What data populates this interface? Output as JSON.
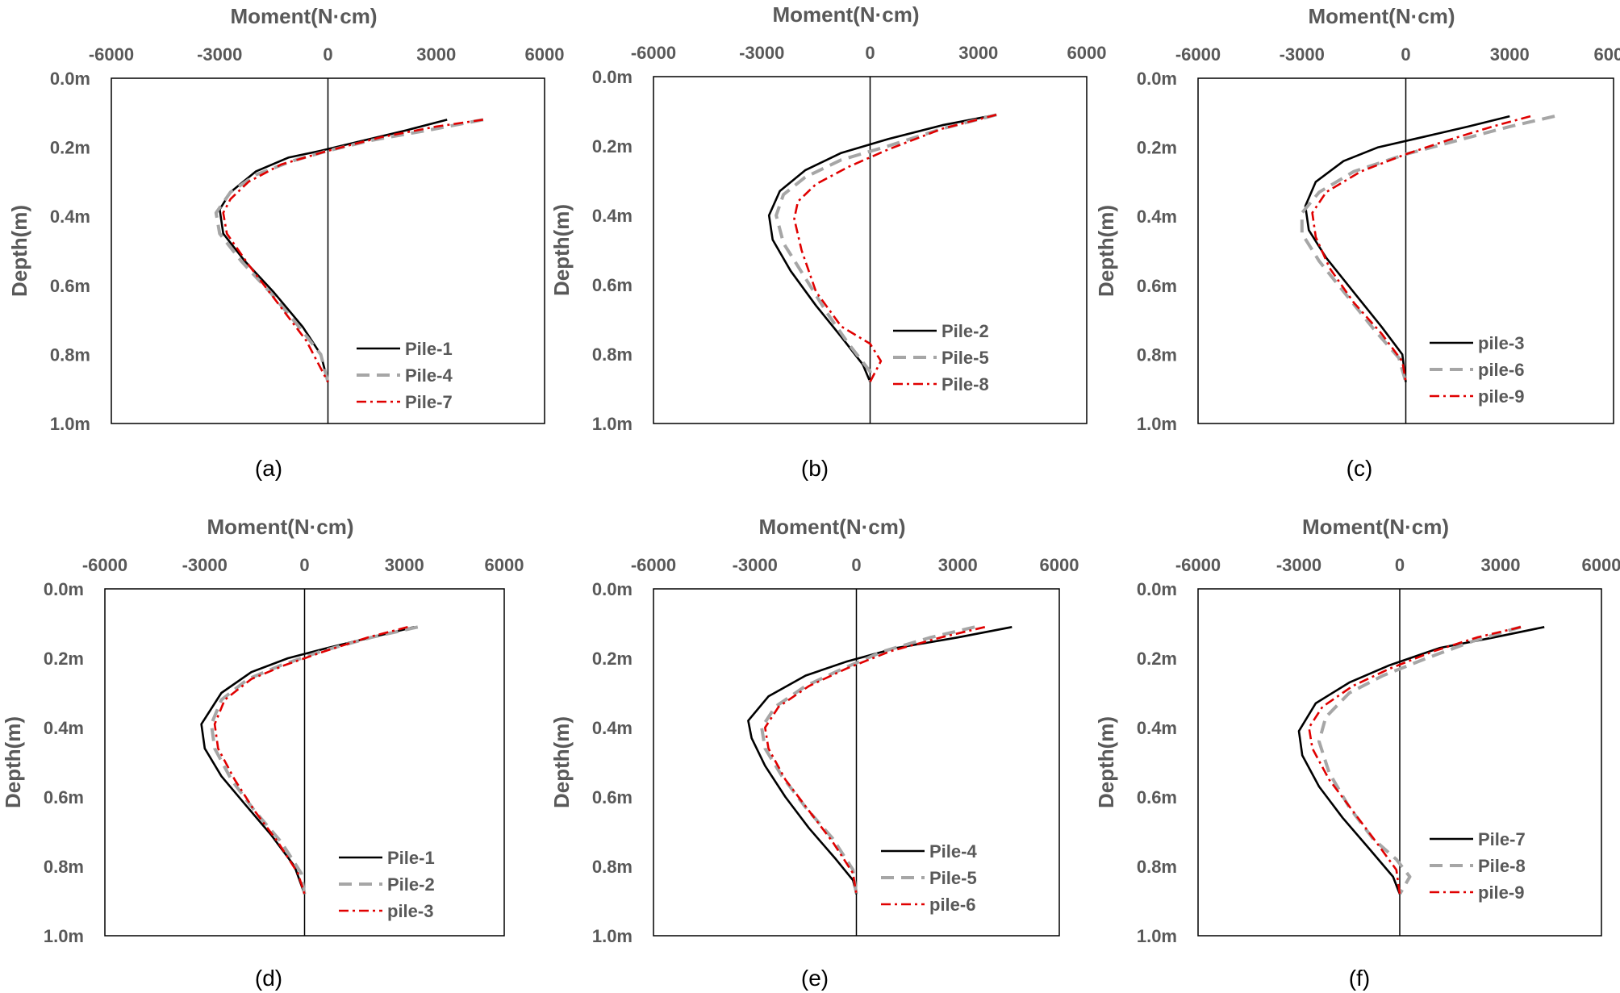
{
  "chart_data": [
    {
      "type": "line",
      "panel_label": "(a)",
      "xlabel": "Moment(N·cm)",
      "ylabel": "Depth(m)",
      "xlim": [
        -6000,
        6000
      ],
      "ylim": [
        0,
        1.0
      ],
      "x_ticks": [
        "-6000",
        "-3000",
        "0",
        "3000",
        "6000"
      ],
      "y_ticks": [
        "0.0m",
        "0.2m",
        "0.4m",
        "0.6m",
        "0.8m",
        "1.0m"
      ],
      "legend_position": "bottom-right",
      "series": [
        {
          "name": "Pile-1",
          "color": "#000000",
          "style": "solid",
          "x": [
            3300,
            2200,
            1000,
            -200,
            -1100,
            -2000,
            -2700,
            -3000,
            -2900,
            -2300,
            -1500,
            -700,
            -200,
            0
          ],
          "y": [
            0.12,
            0.15,
            0.18,
            0.21,
            0.23,
            0.27,
            0.33,
            0.38,
            0.45,
            0.53,
            0.62,
            0.72,
            0.8,
            0.88
          ]
        },
        {
          "name": "Pile-4",
          "color": "#a6a6a6",
          "style": "dash",
          "x": [
            4300,
            2800,
            1200,
            0,
            -1000,
            -2000,
            -2700,
            -3100,
            -3000,
            -2400,
            -1600,
            -800,
            -200,
            0
          ],
          "y": [
            0.12,
            0.15,
            0.18,
            0.21,
            0.24,
            0.28,
            0.33,
            0.39,
            0.45,
            0.53,
            0.62,
            0.72,
            0.8,
            0.88
          ]
        },
        {
          "name": "Pile-7",
          "color": "#e00000",
          "style": "dashdot",
          "x": [
            4300,
            3000,
            1500,
            0,
            -1300,
            -2200,
            -2700,
            -2900,
            -2800,
            -2200,
            -1400,
            -600,
            0
          ],
          "y": [
            0.12,
            0.14,
            0.17,
            0.21,
            0.25,
            0.3,
            0.35,
            0.39,
            0.45,
            0.54,
            0.65,
            0.76,
            0.88
          ]
        }
      ]
    },
    {
      "type": "line",
      "panel_label": "(b)",
      "xlabel": "Moment(N·cm)",
      "ylabel": "Depth(m)",
      "xlim": [
        -6000,
        6000
      ],
      "ylim": [
        0,
        1.0
      ],
      "x_ticks": [
        "-6000",
        "-3000",
        "0",
        "3000",
        "6000"
      ],
      "y_ticks": [
        "0.0m",
        "0.2m",
        "0.4m",
        "0.6m",
        "0.8m",
        "1.0m"
      ],
      "legend_position": "bottom-right",
      "series": [
        {
          "name": "Pile-2",
          "color": "#000000",
          "style": "solid",
          "x": [
            3500,
            2000,
            500,
            -800,
            -1800,
            -2500,
            -2800,
            -2700,
            -2200,
            -1500,
            -800,
            -200,
            0
          ],
          "y": [
            0.11,
            0.14,
            0.18,
            0.22,
            0.27,
            0.33,
            0.4,
            0.47,
            0.56,
            0.66,
            0.75,
            0.83,
            0.88
          ]
        },
        {
          "name": "Pile-5",
          "color": "#a6a6a6",
          "style": "dash",
          "x": [
            3500,
            2000,
            500,
            -800,
            -1800,
            -2400,
            -2600,
            -2400,
            -1800,
            -1200,
            -600,
            0,
            0
          ],
          "y": [
            0.11,
            0.15,
            0.2,
            0.24,
            0.29,
            0.34,
            0.4,
            0.48,
            0.58,
            0.68,
            0.77,
            0.85,
            0.88
          ]
        },
        {
          "name": "Pile-8",
          "color": "#e00000",
          "style": "dashdot",
          "x": [
            3500,
            2000,
            500,
            -600,
            -1500,
            -2000,
            -2100,
            -1900,
            -1500,
            -800,
            0,
            300,
            0
          ],
          "y": [
            0.11,
            0.15,
            0.21,
            0.26,
            0.31,
            0.36,
            0.41,
            0.5,
            0.62,
            0.72,
            0.77,
            0.82,
            0.88
          ]
        }
      ]
    },
    {
      "type": "line",
      "panel_label": "(c)",
      "xlabel": "Moment(N·cm)",
      "ylabel": "Depth(m)",
      "xlim": [
        -6000,
        6000
      ],
      "ylim": [
        0,
        1.0
      ],
      "x_ticks": [
        "-6000",
        "-3000",
        "0",
        "3000",
        "6000"
      ],
      "y_ticks": [
        "0.0m",
        "0.2m",
        "0.4m",
        "0.6m",
        "0.8m",
        "1.0m"
      ],
      "legend_position": "bottom-right",
      "series": [
        {
          "name": "pile-3",
          "color": "#000000",
          "style": "solid",
          "x": [
            3000,
            1800,
            500,
            -800,
            -1800,
            -2600,
            -2900,
            -2800,
            -2300,
            -1500,
            -700,
            -100,
            0
          ],
          "y": [
            0.11,
            0.14,
            0.17,
            0.2,
            0.24,
            0.3,
            0.37,
            0.44,
            0.52,
            0.62,
            0.72,
            0.8,
            0.88
          ]
        },
        {
          "name": "pile-6",
          "color": "#a6a6a6",
          "style": "dash",
          "x": [
            4300,
            3000,
            1500,
            0,
            -1500,
            -2500,
            -3000,
            -3000,
            -2500,
            -1700,
            -900,
            -200,
            0
          ],
          "y": [
            0.11,
            0.14,
            0.18,
            0.22,
            0.27,
            0.33,
            0.39,
            0.45,
            0.53,
            0.63,
            0.73,
            0.81,
            0.88
          ]
        },
        {
          "name": "pile-9",
          "color": "#e00000",
          "style": "dashdot",
          "x": [
            3600,
            2500,
            1200,
            0,
            -1300,
            -2300,
            -2700,
            -2600,
            -2200,
            -1500,
            -700,
            -100,
            0
          ],
          "y": [
            0.11,
            0.14,
            0.18,
            0.22,
            0.27,
            0.33,
            0.39,
            0.46,
            0.55,
            0.65,
            0.74,
            0.82,
            0.88
          ]
        }
      ]
    },
    {
      "type": "line",
      "panel_label": "(d)",
      "xlabel": "Moment(N·cm)",
      "ylabel": "Depth(m)",
      "xlim": [
        -6000,
        6000
      ],
      "ylim": [
        0,
        1.0
      ],
      "x_ticks": [
        "-6000",
        "-3000",
        "0",
        "3000",
        "6000"
      ],
      "y_ticks": [
        "0.0m",
        "0.2m",
        "0.4m",
        "0.6m",
        "0.8m",
        "1.0m"
      ],
      "legend_position": "bottom-right",
      "series": [
        {
          "name": "Pile-1",
          "color": "#000000",
          "style": "solid",
          "x": [
            3300,
            2000,
            700,
            -500,
            -1600,
            -2500,
            -3100,
            -3000,
            -2500,
            -1800,
            -1000,
            -300,
            0
          ],
          "y": [
            0.11,
            0.14,
            0.17,
            0.2,
            0.24,
            0.3,
            0.39,
            0.46,
            0.54,
            0.62,
            0.71,
            0.8,
            0.88
          ]
        },
        {
          "name": "Pile-2",
          "color": "#a6a6a6",
          "style": "dash",
          "x": [
            3400,
            2000,
            500,
            -700,
            -1700,
            -2500,
            -2800,
            -2700,
            -2200,
            -1500,
            -700,
            -100,
            0
          ],
          "y": [
            0.11,
            0.14,
            0.18,
            0.22,
            0.26,
            0.32,
            0.39,
            0.46,
            0.55,
            0.64,
            0.73,
            0.82,
            0.88
          ]
        },
        {
          "name": "pile-3",
          "color": "#e00000",
          "style": "dashdot",
          "x": [
            3100,
            1900,
            600,
            -600,
            -1600,
            -2400,
            -2700,
            -2600,
            -2100,
            -1500,
            -800,
            -200,
            0
          ],
          "y": [
            0.11,
            0.14,
            0.18,
            0.22,
            0.26,
            0.32,
            0.39,
            0.46,
            0.55,
            0.64,
            0.73,
            0.82,
            0.88
          ]
        }
      ]
    },
    {
      "type": "line",
      "panel_label": "(e)",
      "xlabel": "Moment(N·cm)",
      "ylabel": "Depth(m)",
      "xlim": [
        -6000,
        6000
      ],
      "ylim": [
        0,
        1.0
      ],
      "x_ticks": [
        "-6000",
        "-3000",
        "0",
        "3000",
        "6000"
      ],
      "y_ticks": [
        "0.0m",
        "0.2m",
        "0.4m",
        "0.6m",
        "0.8m",
        "1.0m"
      ],
      "legend_position": "bottom-right",
      "series": [
        {
          "name": "Pile-4",
          "color": "#000000",
          "style": "solid",
          "x": [
            4600,
            3000,
            1200,
            -300,
            -1500,
            -2600,
            -3200,
            -3100,
            -2700,
            -2100,
            -1400,
            -600,
            -100,
            0
          ],
          "y": [
            0.11,
            0.14,
            0.17,
            0.21,
            0.25,
            0.31,
            0.38,
            0.43,
            0.51,
            0.6,
            0.69,
            0.78,
            0.84,
            0.88
          ]
        },
        {
          "name": "Pile-5",
          "color": "#a6a6a6",
          "style": "dash",
          "x": [
            3500,
            2200,
            800,
            -400,
            -1500,
            -2400,
            -2800,
            -2700,
            -2200,
            -1500,
            -700,
            -100,
            0
          ],
          "y": [
            0.11,
            0.14,
            0.18,
            0.23,
            0.28,
            0.34,
            0.4,
            0.46,
            0.54,
            0.63,
            0.72,
            0.81,
            0.88
          ]
        },
        {
          "name": "pile-6",
          "color": "#e00000",
          "style": "dashdot",
          "x": [
            3800,
            2500,
            1000,
            -300,
            -1400,
            -2300,
            -2700,
            -2600,
            -2100,
            -1400,
            -700,
            -100,
            0
          ],
          "y": [
            0.11,
            0.14,
            0.18,
            0.23,
            0.28,
            0.34,
            0.4,
            0.46,
            0.55,
            0.64,
            0.73,
            0.82,
            0.88
          ]
        }
      ]
    },
    {
      "type": "line",
      "panel_label": "(f)",
      "xlabel": "Moment(N·cm)",
      "ylabel": "Depth(m)",
      "xlim": [
        -6000,
        6000
      ],
      "ylim": [
        0,
        1.0
      ],
      "x_ticks": [
        "-6000",
        "-3000",
        "0",
        "3000",
        "6000"
      ],
      "y_ticks": [
        "0.0m",
        "0.2m",
        "0.4m",
        "0.6m",
        "0.8m",
        "1.0m"
      ],
      "legend_position": "bottom-right",
      "series": [
        {
          "name": "Pile-7",
          "color": "#000000",
          "style": "solid",
          "x": [
            4300,
            2800,
            1200,
            -300,
            -1500,
            -2500,
            -3000,
            -2900,
            -2400,
            -1700,
            -900,
            -200,
            0
          ],
          "y": [
            0.11,
            0.14,
            0.17,
            0.22,
            0.27,
            0.33,
            0.41,
            0.48,
            0.57,
            0.66,
            0.75,
            0.83,
            0.88
          ]
        },
        {
          "name": "Pile-8",
          "color": "#a6a6a6",
          "style": "dash",
          "x": [
            3600,
            2200,
            800,
            -500,
            -1500,
            -2200,
            -2400,
            -2100,
            -1500,
            -800,
            -100,
            300,
            0
          ],
          "y": [
            0.11,
            0.15,
            0.2,
            0.25,
            0.3,
            0.37,
            0.44,
            0.53,
            0.63,
            0.72,
            0.78,
            0.83,
            0.88
          ]
        },
        {
          "name": "pile-9",
          "color": "#e00000",
          "style": "dashdot",
          "x": [
            3600,
            2300,
            1000,
            -300,
            -1400,
            -2300,
            -2700,
            -2600,
            -2100,
            -1400,
            -700,
            -100,
            0
          ],
          "y": [
            0.11,
            0.14,
            0.18,
            0.23,
            0.28,
            0.34,
            0.4,
            0.46,
            0.55,
            0.64,
            0.73,
            0.81,
            0.88
          ]
        }
      ]
    }
  ]
}
